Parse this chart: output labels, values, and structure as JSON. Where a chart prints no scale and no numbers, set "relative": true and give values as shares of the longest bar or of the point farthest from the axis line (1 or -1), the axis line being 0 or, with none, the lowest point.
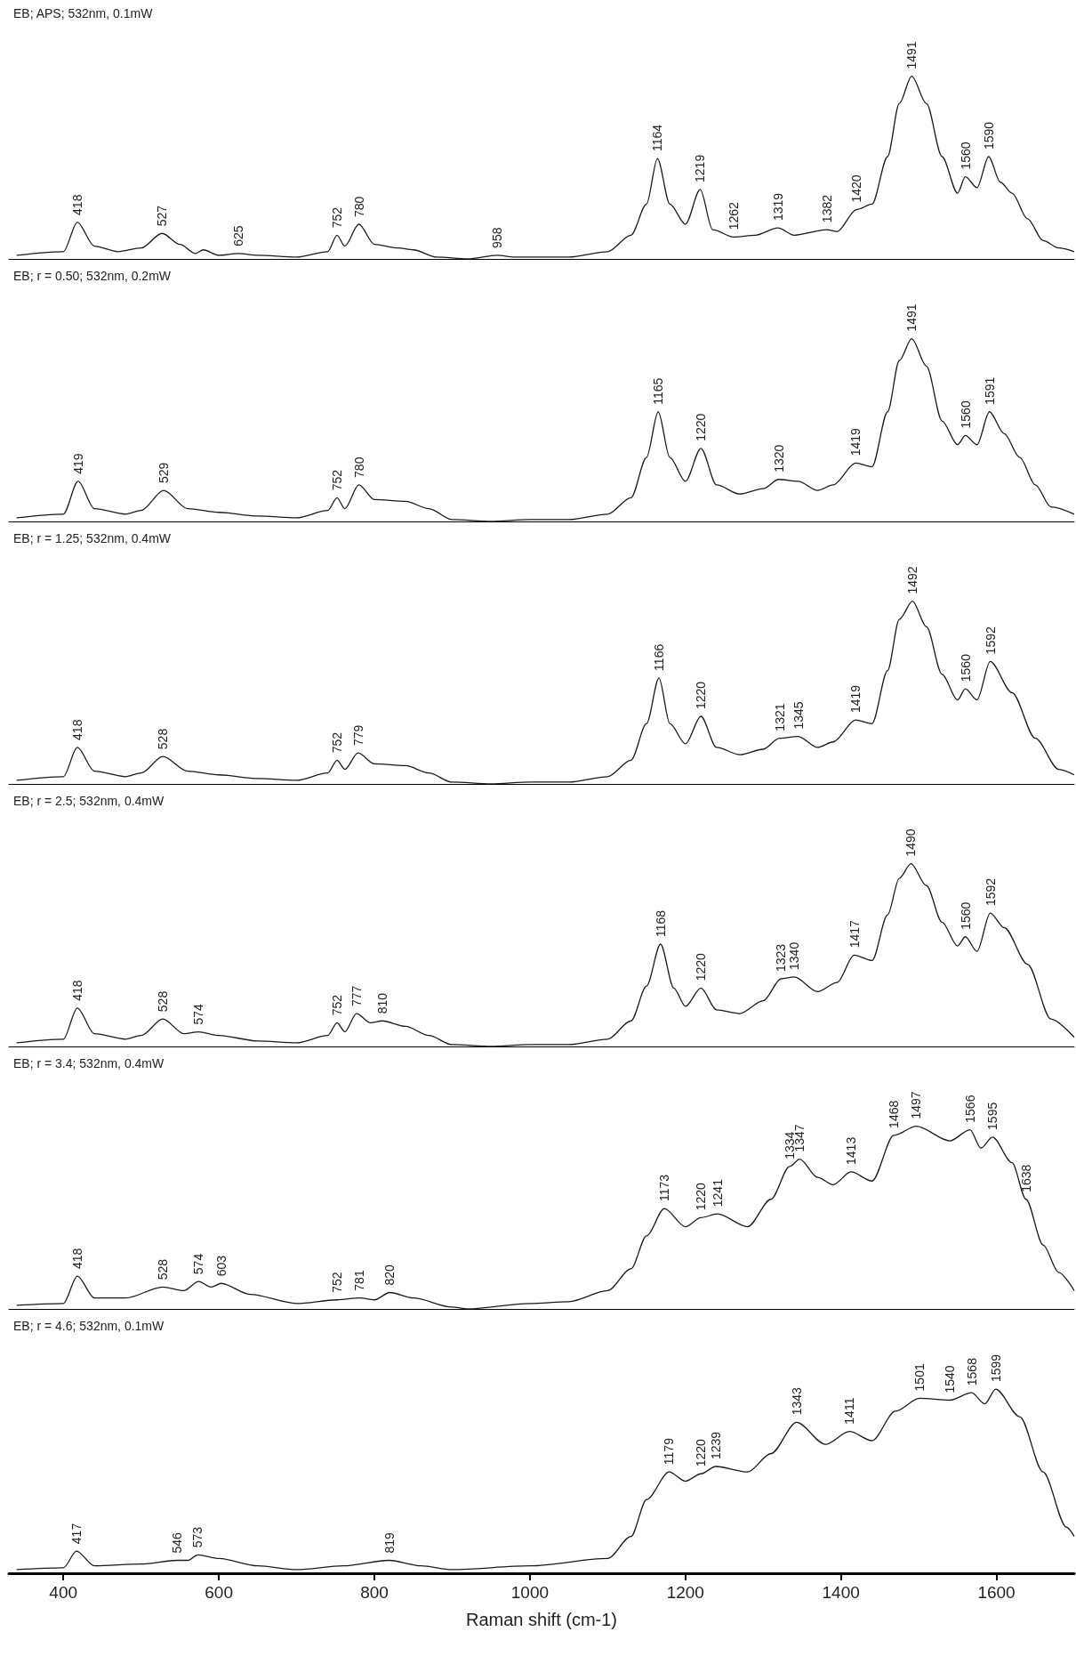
{
  "chart_data": [
    {
      "type": "line",
      "title": "EB; APS; 532nm, 0.1mW",
      "relative": true,
      "xlim": [
        330,
        1700
      ],
      "tick_labels": false,
      "grid": false,
      "series": [
        {
          "color": "#1a1a1a",
          "x": [
            340,
            400,
            418,
            440,
            470,
            500,
            527,
            550,
            570,
            580,
            600,
            625,
            650,
            700,
            740,
            752,
            762,
            780,
            800,
            830,
            850,
            880,
            920,
            958,
            980,
            1050,
            1100,
            1130,
            1150,
            1164,
            1180,
            1200,
            1219,
            1235,
            1262,
            1290,
            1319,
            1340,
            1382,
            1395,
            1420,
            1440,
            1460,
            1475,
            1491,
            1510,
            1530,
            1550,
            1560,
            1575,
            1590,
            1605,
            1620,
            1640,
            1660,
            1680,
            1700
          ],
          "values": [
            0.02,
            0.04,
            0.2,
            0.07,
            0.04,
            0.06,
            0.14,
            0.08,
            0.03,
            0.05,
            0.02,
            0.03,
            0.02,
            0.01,
            0.04,
            0.13,
            0.07,
            0.19,
            0.08,
            0.06,
            0.05,
            0.01,
            0,
            0.02,
            0.01,
            0.01,
            0.04,
            0.13,
            0.3,
            0.55,
            0.3,
            0.19,
            0.38,
            0.16,
            0.12,
            0.13,
            0.17,
            0.13,
            0.16,
            0.15,
            0.27,
            0.3,
            0.56,
            0.85,
            1,
            0.85,
            0.56,
            0.36,
            0.45,
            0.39,
            0.56,
            0.42,
            0.36,
            0.22,
            0.1,
            0.06,
            0.04
          ]
        }
      ],
      "annotations": [
        {
          "text": "418",
          "x": 418,
          "y": 0.2
        },
        {
          "text": "527",
          "x": 527,
          "y": 0.14
        },
        {
          "text": "625",
          "x": 625,
          "y": 0.03
        },
        {
          "text": "752",
          "x": 752,
          "y": 0.13
        },
        {
          "text": "780",
          "x": 780,
          "y": 0.19
        },
        {
          "text": "958",
          "x": 958,
          "y": 0.02
        },
        {
          "text": "1164",
          "x": 1164,
          "y": 0.55
        },
        {
          "text": "1219",
          "x": 1219,
          "y": 0.38
        },
        {
          "text": "1262",
          "x": 1262,
          "y": 0.12
        },
        {
          "text": "1319",
          "x": 1319,
          "y": 0.17
        },
        {
          "text": "1382",
          "x": 1382,
          "y": 0.16
        },
        {
          "text": "1420",
          "x": 1420,
          "y": 0.27
        },
        {
          "text": "1491",
          "x": 1491,
          "y": 1
        },
        {
          "text": "1560",
          "x": 1560,
          "y": 0.45
        },
        {
          "text": "1590",
          "x": 1590,
          "y": 0.56
        }
      ]
    },
    {
      "type": "line",
      "title": "EB; r = 0.50; 532nm, 0.2mW",
      "relative": true,
      "xlim": [
        330,
        1700
      ],
      "tick_labels": false,
      "grid": false,
      "series": [
        {
          "color": "#1a1a1a",
          "x": [
            340,
            400,
            419,
            440,
            480,
            500,
            529,
            560,
            600,
            650,
            700,
            740,
            752,
            762,
            780,
            800,
            840,
            870,
            900,
            950,
            1000,
            1050,
            1100,
            1130,
            1150,
            1165,
            1180,
            1200,
            1220,
            1240,
            1270,
            1300,
            1320,
            1345,
            1370,
            1390,
            1419,
            1440,
            1460,
            1475,
            1491,
            1510,
            1530,
            1550,
            1560,
            1575,
            1591,
            1610,
            1630,
            1650,
            1670,
            1700
          ],
          "values": [
            0.02,
            0.04,
            0.22,
            0.07,
            0.04,
            0.06,
            0.17,
            0.07,
            0.05,
            0.03,
            0.02,
            0.06,
            0.13,
            0.07,
            0.2,
            0.12,
            0.11,
            0.07,
            0.01,
            0,
            0.01,
            0.01,
            0.04,
            0.13,
            0.35,
            0.6,
            0.35,
            0.22,
            0.4,
            0.2,
            0.15,
            0.18,
            0.23,
            0.22,
            0.17,
            0.2,
            0.32,
            0.3,
            0.6,
            0.88,
            1,
            0.85,
            0.55,
            0.42,
            0.47,
            0.42,
            0.6,
            0.48,
            0.35,
            0.2,
            0.08,
            0.04
          ]
        }
      ],
      "annotations": [
        {
          "text": "419",
          "x": 419,
          "y": 0.22
        },
        {
          "text": "529",
          "x": 529,
          "y": 0.17
        },
        {
          "text": "752",
          "x": 752,
          "y": 0.13
        },
        {
          "text": "780",
          "x": 780,
          "y": 0.2
        },
        {
          "text": "1165",
          "x": 1165,
          "y": 0.6
        },
        {
          "text": "1220",
          "x": 1220,
          "y": 0.4
        },
        {
          "text": "1320",
          "x": 1320,
          "y": 0.23
        },
        {
          "text": "1419",
          "x": 1419,
          "y": 0.32
        },
        {
          "text": "1491",
          "x": 1491,
          "y": 1
        },
        {
          "text": "1560",
          "x": 1560,
          "y": 0.47
        },
        {
          "text": "1591",
          "x": 1591,
          "y": 0.6
        }
      ]
    },
    {
      "type": "line",
      "title": "EB; r = 1.25; 532nm, 0.4mW",
      "relative": true,
      "xlim": [
        330,
        1700
      ],
      "tick_labels": false,
      "grid": false,
      "series": [
        {
          "color": "#1a1a1a",
          "x": [
            340,
            400,
            418,
            440,
            480,
            500,
            528,
            560,
            600,
            650,
            700,
            740,
            752,
            762,
            779,
            800,
            840,
            870,
            900,
            950,
            1000,
            1050,
            1100,
            1130,
            1150,
            1166,
            1180,
            1200,
            1220,
            1240,
            1270,
            1300,
            1321,
            1345,
            1370,
            1390,
            1419,
            1440,
            1460,
            1475,
            1492,
            1510,
            1530,
            1550,
            1560,
            1575,
            1592,
            1620,
            1650,
            1680,
            1700
          ],
          "values": [
            0.02,
            0.04,
            0.2,
            0.07,
            0.04,
            0.06,
            0.15,
            0.07,
            0.05,
            0.03,
            0.02,
            0.06,
            0.13,
            0.08,
            0.17,
            0.11,
            0.1,
            0.06,
            0.01,
            0,
            0.01,
            0.01,
            0.04,
            0.13,
            0.33,
            0.58,
            0.33,
            0.22,
            0.37,
            0.2,
            0.16,
            0.19,
            0.25,
            0.26,
            0.2,
            0.23,
            0.35,
            0.33,
            0.62,
            0.9,
            1,
            0.86,
            0.6,
            0.46,
            0.52,
            0.46,
            0.67,
            0.5,
            0.25,
            0.08,
            0.05
          ]
        }
      ],
      "annotations": [
        {
          "text": "418",
          "x": 418,
          "y": 0.2
        },
        {
          "text": "528",
          "x": 528,
          "y": 0.15
        },
        {
          "text": "752",
          "x": 752,
          "y": 0.13
        },
        {
          "text": "779",
          "x": 779,
          "y": 0.17
        },
        {
          "text": "1166",
          "x": 1166,
          "y": 0.58
        },
        {
          "text": "1220",
          "x": 1220,
          "y": 0.37
        },
        {
          "text": "1321",
          "x": 1321,
          "y": 0.25
        },
        {
          "text": "1345",
          "x": 1345,
          "y": 0.26
        },
        {
          "text": "1419",
          "x": 1419,
          "y": 0.35
        },
        {
          "text": "1492",
          "x": 1492,
          "y": 1
        },
        {
          "text": "1560",
          "x": 1560,
          "y": 0.52
        },
        {
          "text": "1592",
          "x": 1592,
          "y": 0.67
        }
      ]
    },
    {
      "type": "line",
      "title": "EB; r = 2.5; 532nm, 0.4mW",
      "relative": true,
      "xlim": [
        330,
        1700
      ],
      "tick_labels": false,
      "grid": false,
      "series": [
        {
          "color": "#1a1a1a",
          "x": [
            340,
            400,
            418,
            440,
            480,
            500,
            528,
            555,
            574,
            600,
            650,
            700,
            740,
            752,
            762,
            777,
            795,
            810,
            840,
            870,
            900,
            950,
            1000,
            1050,
            1100,
            1130,
            1150,
            1168,
            1185,
            1200,
            1220,
            1240,
            1270,
            1300,
            1323,
            1340,
            1370,
            1395,
            1417,
            1440,
            1460,
            1475,
            1490,
            1510,
            1530,
            1550,
            1560,
            1575,
            1592,
            1610,
            1640,
            1670,
            1700
          ],
          "values": [
            0.02,
            0.04,
            0.21,
            0.07,
            0.04,
            0.06,
            0.15,
            0.07,
            0.08,
            0.06,
            0.03,
            0.02,
            0.06,
            0.13,
            0.08,
            0.18,
            0.13,
            0.14,
            0.11,
            0.06,
            0.01,
            0,
            0.01,
            0.01,
            0.04,
            0.14,
            0.33,
            0.56,
            0.32,
            0.22,
            0.32,
            0.2,
            0.18,
            0.25,
            0.37,
            0.38,
            0.3,
            0.35,
            0.5,
            0.47,
            0.72,
            0.92,
            1,
            0.88,
            0.68,
            0.55,
            0.6,
            0.52,
            0.73,
            0.65,
            0.45,
            0.15,
            0.05
          ]
        }
      ],
      "annotations": [
        {
          "text": "418",
          "x": 418,
          "y": 0.21
        },
        {
          "text": "528",
          "x": 528,
          "y": 0.15
        },
        {
          "text": "574",
          "x": 574,
          "y": 0.08
        },
        {
          "text": "752",
          "x": 752,
          "y": 0.13
        },
        {
          "text": "777",
          "x": 777,
          "y": 0.18
        },
        {
          "text": "810",
          "x": 810,
          "y": 0.14
        },
        {
          "text": "1168",
          "x": 1168,
          "y": 0.56
        },
        {
          "text": "1220",
          "x": 1220,
          "y": 0.32
        },
        {
          "text": "1323",
          "x": 1323,
          "y": 0.37
        },
        {
          "text": "1340",
          "x": 1340,
          "y": 0.38
        },
        {
          "text": "1417",
          "x": 1417,
          "y": 0.5
        },
        {
          "text": "1490",
          "x": 1490,
          "y": 1
        },
        {
          "text": "1560",
          "x": 1560,
          "y": 0.6
        },
        {
          "text": "1592",
          "x": 1592,
          "y": 0.73
        }
      ]
    },
    {
      "type": "line",
      "title": "EB; r = 3.4; 532nm, 0.4mW",
      "relative": true,
      "xlim": [
        330,
        1700
      ],
      "tick_labels": false,
      "grid": false,
      "series": [
        {
          "color": "#1a1a1a",
          "x": [
            340,
            400,
            418,
            440,
            480,
            528,
            555,
            574,
            590,
            603,
            640,
            700,
            752,
            781,
            800,
            820,
            850,
            900,
            920,
            1000,
            1050,
            1100,
            1130,
            1150,
            1173,
            1200,
            1220,
            1241,
            1280,
            1310,
            1334,
            1347,
            1370,
            1390,
            1413,
            1440,
            1468,
            1497,
            1540,
            1566,
            1580,
            1595,
            1620,
            1638,
            1660,
            1680,
            1700
          ],
          "values": [
            0.02,
            0.03,
            0.18,
            0.06,
            0.06,
            0.12,
            0.1,
            0.15,
            0.12,
            0.14,
            0.08,
            0.03,
            0.05,
            0.06,
            0.05,
            0.09,
            0.06,
            0.01,
            0,
            0.03,
            0.04,
            0.1,
            0.22,
            0.4,
            0.55,
            0.45,
            0.5,
            0.52,
            0.45,
            0.6,
            0.78,
            0.82,
            0.72,
            0.68,
            0.75,
            0.7,
            0.95,
            1,
            0.92,
            0.98,
            0.88,
            0.94,
            0.8,
            0.6,
            0.35,
            0.2,
            0.1
          ]
        }
      ],
      "annotations": [
        {
          "text": "418",
          "x": 418,
          "y": 0.18
        },
        {
          "text": "528",
          "x": 528,
          "y": 0.12
        },
        {
          "text": "574",
          "x": 574,
          "y": 0.15
        },
        {
          "text": "603",
          "x": 603,
          "y": 0.14
        },
        {
          "text": "752",
          "x": 752,
          "y": 0.05
        },
        {
          "text": "781",
          "x": 781,
          "y": 0.06
        },
        {
          "text": "820",
          "x": 820,
          "y": 0.09
        },
        {
          "text": "1173",
          "x": 1173,
          "y": 0.55
        },
        {
          "text": "1220",
          "x": 1220,
          "y": 0.5
        },
        {
          "text": "1241",
          "x": 1241,
          "y": 0.52
        },
        {
          "text": "1334",
          "x": 1334,
          "y": 0.78
        },
        {
          "text": "1347",
          "x": 1347,
          "y": 0.82
        },
        {
          "text": "1413",
          "x": 1413,
          "y": 0.75
        },
        {
          "text": "1468",
          "x": 1468,
          "y": 0.95
        },
        {
          "text": "1497",
          "x": 1497,
          "y": 1
        },
        {
          "text": "1566",
          "x": 1566,
          "y": 0.98
        },
        {
          "text": "1595",
          "x": 1595,
          "y": 0.94
        },
        {
          "text": "1638",
          "x": 1638,
          "y": 0.6
        }
      ]
    },
    {
      "type": "line",
      "title": "EB; r = 4.6; 532nm, 0.1mW",
      "xlabel": "Raman shift (cm-1)",
      "relative": true,
      "xlim": [
        330,
        1700
      ],
      "xticks": [
        400,
        600,
        800,
        1000,
        1200,
        1400,
        1600
      ],
      "tick_labels": "x",
      "grid": false,
      "series": [
        {
          "color": "#1a1a1a",
          "x": [
            340,
            400,
            417,
            440,
            500,
            546,
            560,
            573,
            600,
            650,
            700,
            760,
            819,
            860,
            900,
            1000,
            1100,
            1130,
            1150,
            1179,
            1200,
            1220,
            1239,
            1280,
            1310,
            1343,
            1380,
            1411,
            1440,
            1470,
            1501,
            1540,
            1568,
            1585,
            1599,
            1630,
            1660,
            1690,
            1700
          ],
          "values": [
            0.02,
            0.03,
            0.12,
            0.04,
            0.05,
            0.07,
            0.07,
            0.1,
            0.08,
            0.04,
            0.02,
            0.04,
            0.07,
            0.04,
            0.02,
            0.04,
            0.08,
            0.2,
            0.4,
            0.55,
            0.5,
            0.54,
            0.58,
            0.55,
            0.65,
            0.82,
            0.7,
            0.77,
            0.72,
            0.88,
            0.95,
            0.94,
            0.98,
            0.92,
            1,
            0.85,
            0.55,
            0.25,
            0.2
          ]
        }
      ],
      "annotations": [
        {
          "text": "417",
          "x": 417,
          "y": 0.12
        },
        {
          "text": "546",
          "x": 546,
          "y": 0.07
        },
        {
          "text": "573",
          "x": 573,
          "y": 0.1
        },
        {
          "text": "819",
          "x": 819,
          "y": 0.07
        },
        {
          "text": "1179",
          "x": 1179,
          "y": 0.55
        },
        {
          "text": "1220",
          "x": 1220,
          "y": 0.54
        },
        {
          "text": "1239",
          "x": 1239,
          "y": 0.58
        },
        {
          "text": "1343",
          "x": 1343,
          "y": 0.82
        },
        {
          "text": "1411",
          "x": 1411,
          "y": 0.77
        },
        {
          "text": "1501",
          "x": 1501,
          "y": 0.95
        },
        {
          "text": "1540",
          "x": 1540,
          "y": 0.94
        },
        {
          "text": "1568",
          "x": 1568,
          "y": 0.98
        },
        {
          "text": "1599",
          "x": 1599,
          "y": 1
        }
      ]
    }
  ]
}
